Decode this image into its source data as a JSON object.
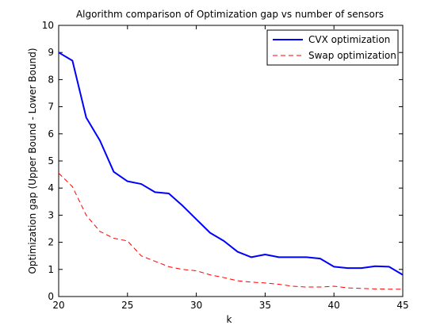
{
  "chart_data": {
    "type": "line",
    "title": "Algorithm comparison of Optimization gap vs number of sensors",
    "xlabel": "k",
    "ylabel": "Optimization gap (Upper Bound - Lower Bound)",
    "xlim": [
      20,
      45
    ],
    "ylim": [
      0,
      10
    ],
    "xticks": [
      20,
      25,
      30,
      35,
      40,
      45
    ],
    "yticks": [
      0,
      1,
      2,
      3,
      4,
      5,
      6,
      7,
      8,
      9,
      10
    ],
    "grid": false,
    "legend_position": "top-right",
    "x": [
      20,
      21,
      22,
      23,
      24,
      25,
      26,
      27,
      28,
      29,
      30,
      31,
      32,
      33,
      34,
      35,
      36,
      37,
      38,
      39,
      40,
      41,
      42,
      43,
      44,
      45
    ],
    "series": [
      {
        "name": "CVX optimization",
        "color": "#0000ff",
        "line_style": "solid",
        "values": [
          9.0,
          8.7,
          6.6,
          5.75,
          4.6,
          4.25,
          4.15,
          3.85,
          3.8,
          3.35,
          2.85,
          2.35,
          2.05,
          1.65,
          1.45,
          1.55,
          1.45,
          1.45,
          1.45,
          1.4,
          1.1,
          1.05,
          1.05,
          1.12,
          1.1,
          0.8
        ]
      },
      {
        "name": "Swap optimization",
        "color": "#ff0000",
        "line_style": "dashed",
        "values": [
          4.55,
          4.05,
          3.0,
          2.4,
          2.15,
          2.05,
          1.5,
          1.3,
          1.1,
          1.0,
          0.95,
          0.8,
          0.7,
          0.58,
          0.53,
          0.5,
          0.45,
          0.38,
          0.35,
          0.35,
          0.38,
          0.32,
          0.3,
          0.28,
          0.27,
          0.27
        ]
      }
    ]
  }
}
